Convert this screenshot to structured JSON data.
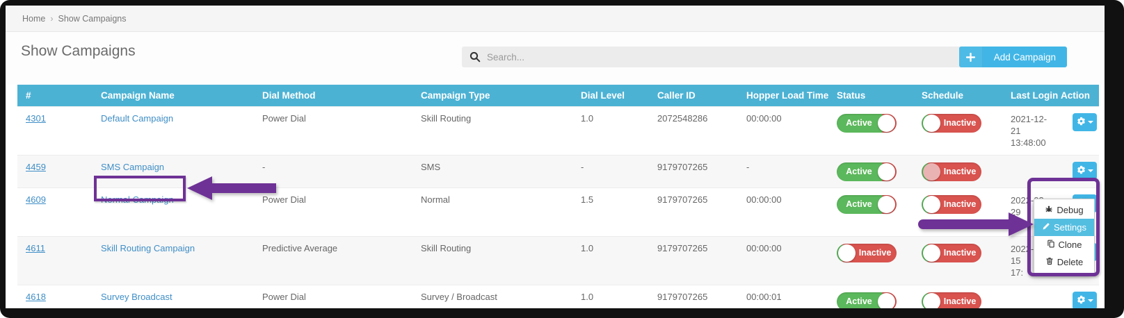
{
  "breadcrumb": {
    "home": "Home",
    "separator": "›",
    "current": "Show Campaigns"
  },
  "page": {
    "title": "Show Campaigns"
  },
  "toolbar": {
    "search_placeholder": "Search...",
    "add_campaign_label": "Add Campaign"
  },
  "table": {
    "columns": [
      "#",
      "Campaign Name",
      "Dial Method",
      "Campaign Type",
      "Dial Level",
      "Caller ID",
      "Hopper Load Time",
      "Status",
      "Schedule",
      "Last Login",
      "Action"
    ],
    "rows": [
      {
        "id": "4301",
        "name": "Default Campaign",
        "dial_method": "Power Dial",
        "campaign_type": "Skill Routing",
        "dial_level": "1.0",
        "caller_id": "2072548286",
        "hopper": "00:00:00",
        "status_label": "Active",
        "status_state": "on",
        "schedule_label": "Inactive",
        "schedule_state": "off",
        "schedule_knob_faded": false,
        "last_login": "2021-12-\n21\n13:48:00"
      },
      {
        "id": "4459",
        "name": "SMS Campaign",
        "dial_method": "-",
        "campaign_type": "SMS",
        "dial_level": "-",
        "caller_id": "9179707265",
        "hopper": "-",
        "status_label": "Active",
        "status_state": "on",
        "schedule_label": "Inactive",
        "schedule_state": "off",
        "schedule_knob_faded": true,
        "last_login": ""
      },
      {
        "id": "4609",
        "name": "Normal Campaign",
        "dial_method": "Power Dial",
        "campaign_type": "Normal",
        "dial_level": "1.5",
        "caller_id": "9179707265",
        "hopper": "00:00:00",
        "status_label": "Active",
        "status_state": "on",
        "schedule_label": "Inactive",
        "schedule_state": "off",
        "schedule_knob_faded": false,
        "last_login": "2022-03-\n29\n17:"
      },
      {
        "id": "4611",
        "name": "Skill Routing Campaign",
        "dial_method": "Predictive Average",
        "campaign_type": "Skill Routing",
        "dial_level": "1.0",
        "caller_id": "9179707265",
        "hopper": "00:00:00",
        "status_label": "Inactive",
        "status_state": "off",
        "schedule_label": "Inactive",
        "schedule_state": "off",
        "schedule_knob_faded": false,
        "last_login": "2022-03-\n15\n17:"
      },
      {
        "id": "4618",
        "name": "Survey Broadcast",
        "dial_method": "Power Dial",
        "campaign_type": "Survey / Broadcast",
        "dial_level": "1.0",
        "caller_id": "9179707265",
        "hopper": "00:00:01",
        "status_label": "Active",
        "status_state": "on",
        "schedule_label": "Inactive",
        "schedule_state": "off",
        "schedule_knob_faded": false,
        "last_login": ""
      }
    ]
  },
  "action_menu": {
    "items": [
      {
        "label": "Debug",
        "icon": "bug-icon",
        "highlighted": false
      },
      {
        "label": "Settings",
        "icon": "pencil-icon",
        "highlighted": true
      },
      {
        "label": "Clone",
        "icon": "clone-icon",
        "highlighted": false
      },
      {
        "label": "Delete",
        "icon": "trash-icon",
        "highlighted": false
      }
    ]
  },
  "colors": {
    "table_header": "#4cb2d4",
    "link": "#3f8ec6",
    "toggle_on": "#5cb85c",
    "toggle_off": "#d9534f",
    "accent_button": "#41b6e6",
    "menu_highlight": "#54bee1",
    "annotation": "#6e3296"
  }
}
